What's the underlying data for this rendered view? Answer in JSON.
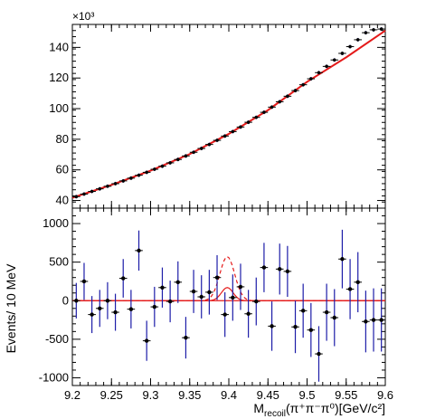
{
  "chart_data": [
    {
      "type": "scatter",
      "panel": "top",
      "exponent_label": "×10³",
      "ylim": [
        35,
        155
      ],
      "ylabel": "",
      "y_ticks": [
        40,
        60,
        80,
        100,
        120,
        140
      ],
      "x_ticks": [
        9.2,
        9.25,
        9.3,
        9.35,
        9.4,
        9.45,
        9.5,
        9.55,
        9.6
      ],
      "series": [
        {
          "kind": "points",
          "x": [
            9.205,
            9.215,
            9.225,
            9.235,
            9.245,
            9.255,
            9.265,
            9.275,
            9.285,
            9.295,
            9.305,
            9.315,
            9.325,
            9.335,
            9.345,
            9.355,
            9.365,
            9.375,
            9.385,
            9.395,
            9.405,
            9.415,
            9.425,
            9.435,
            9.445,
            9.455,
            9.465,
            9.475,
            9.485,
            9.495,
            9.505,
            9.515,
            9.525,
            9.535,
            9.545,
            9.555,
            9.565,
            9.575,
            9.585,
            9.595
          ],
          "values": [
            42.5,
            44.2,
            45.9,
            47.6,
            49.3,
            51.0,
            52.8,
            54.6,
            56.5,
            58.4,
            60.4,
            62.4,
            64.6,
            66.8,
            69.1,
            71.5,
            74.0,
            76.6,
            79.3,
            82.1,
            85.0,
            88.0,
            91.1,
            94.3,
            97.6,
            101.0,
            104.5,
            108.1,
            111.8,
            115.6,
            119.5,
            123.5,
            127.6,
            131.8,
            136.1,
            140.5,
            145.0,
            149.6,
            151.5,
            152.0
          ]
        },
        {
          "kind": "fit",
          "x": [
            9.2,
            9.25,
            9.3,
            9.35,
            9.4,
            9.45,
            9.5,
            9.55,
            9.6
          ],
          "values": [
            41.8,
            50.2,
            59.5,
            70.3,
            83.5,
            99.0,
            117.5,
            133.5,
            151.0
          ]
        }
      ]
    },
    {
      "type": "scatter",
      "panel": "bottom",
      "xlabel_main": "M",
      "xlabel_sub": "recoil",
      "xlabel_rest": "(π⁺π⁻π⁰)[GeV/c²]",
      "ylabel": "Events/ 10 MeV",
      "xlim": [
        9.2,
        9.6
      ],
      "ylim": [
        -1100,
        1200
      ],
      "y_ticks": [
        1000,
        500,
        0,
        -500,
        -1000
      ],
      "x_ticks": [
        9.2,
        9.25,
        9.3,
        9.35,
        9.4,
        9.45,
        9.5,
        9.55,
        9.6
      ],
      "x_tick_labels": [
        "9.2",
        "9.25",
        "9.3",
        "9.35",
        "9.4",
        "9.45",
        "9.5",
        "9.55",
        "9.6"
      ],
      "points": {
        "x": [
          9.205,
          9.215,
          9.225,
          9.235,
          9.245,
          9.255,
          9.265,
          9.275,
          9.285,
          9.295,
          9.305,
          9.315,
          9.325,
          9.335,
          9.345,
          9.355,
          9.365,
          9.375,
          9.385,
          9.395,
          9.405,
          9.415,
          9.425,
          9.435,
          9.445,
          9.455,
          9.465,
          9.475,
          9.485,
          9.495,
          9.505,
          9.515,
          9.525,
          9.535,
          9.545,
          9.555,
          9.565,
          9.575,
          9.585,
          9.595
        ],
        "values": [
          0,
          250,
          -180,
          -100,
          0,
          -150,
          290,
          -110,
          650,
          -520,
          -80,
          170,
          -10,
          240,
          -480,
          120,
          50,
          110,
          300,
          -180,
          40,
          180,
          -170,
          -10,
          430,
          -330,
          410,
          380,
          -340,
          -130,
          -380,
          -690,
          -150,
          -220,
          540,
          150,
          240,
          -270,
          -250,
          -250
        ],
        "errors": [
          230,
          240,
          240,
          240,
          240,
          240,
          250,
          250,
          260,
          260,
          260,
          260,
          270,
          270,
          270,
          280,
          280,
          290,
          290,
          290,
          300,
          300,
          310,
          310,
          320,
          320,
          330,
          330,
          340,
          350,
          350,
          360,
          370,
          370,
          380,
          390,
          390,
          400,
          410,
          410
        ]
      },
      "curves": [
        {
          "name": "",
          "style": "solid",
          "peak": 170,
          "mean": 9.398,
          "sigma": 0.0075
        },
        {
          "name": "",
          "style": "dashed",
          "peak": 570,
          "mean": 9.398,
          "sigma": 0.0095
        }
      ],
      "baseline": 0
    }
  ],
  "colors": {
    "data_points": "#000000",
    "error_bars": "#1c1ca8",
    "fit_curve": "#e41a1a",
    "frame": "#000000"
  }
}
